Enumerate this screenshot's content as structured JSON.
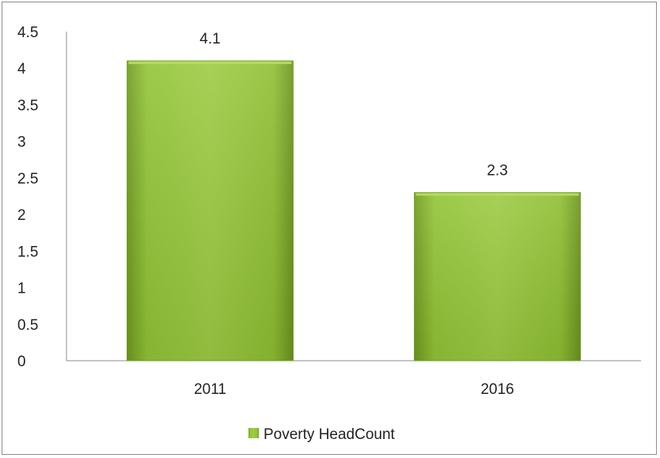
{
  "chart_data": {
    "type": "bar",
    "categories": [
      "2011",
      "2016"
    ],
    "series": [
      {
        "name": "Poverty HeadCount",
        "values": [
          4.1,
          2.3
        ],
        "color": "#8cbf2e"
      }
    ],
    "ylim": [
      0,
      4.5
    ],
    "yticks": [
      "0",
      "0.5",
      "1",
      "1.5",
      "2",
      "2.5",
      "3",
      "3.5",
      "4",
      "4.5"
    ],
    "data_labels": [
      "4.1",
      "2.3"
    ],
    "grid": false,
    "legend_position": "bottom"
  }
}
